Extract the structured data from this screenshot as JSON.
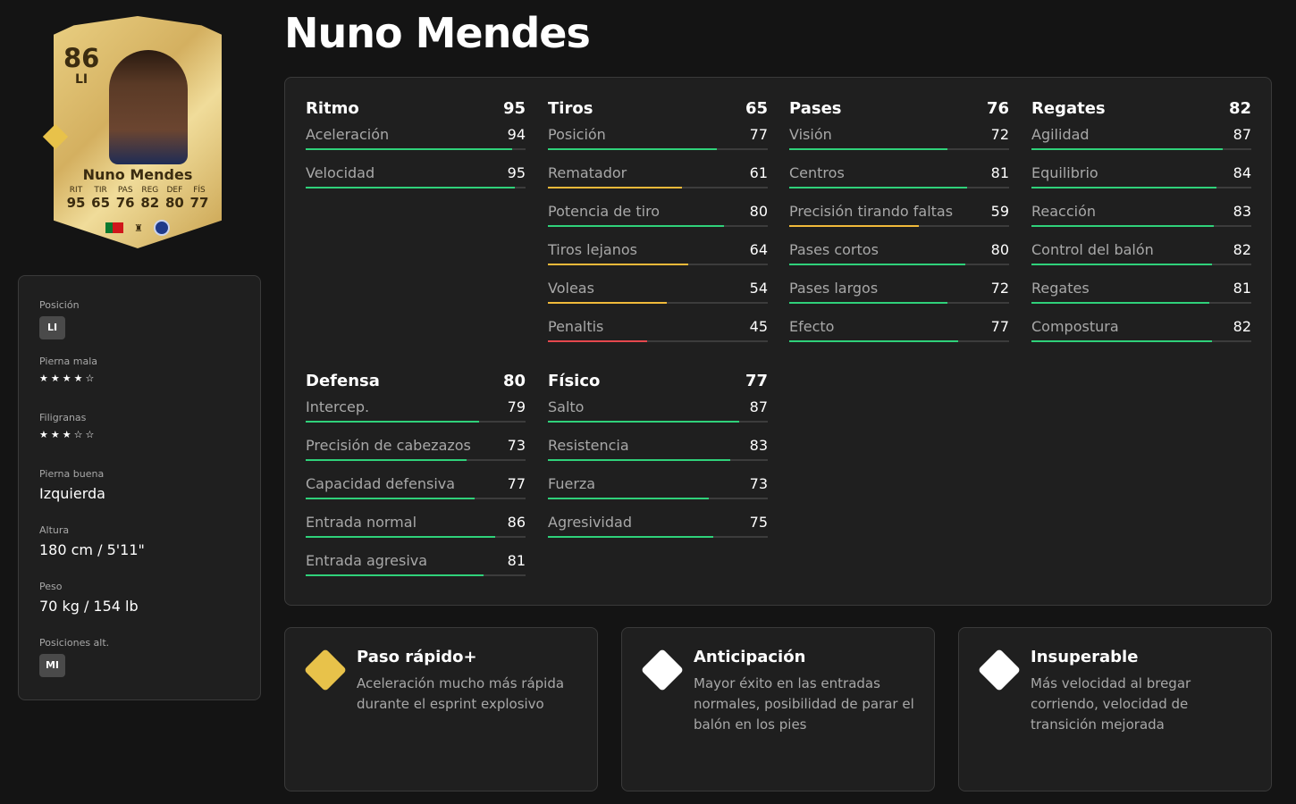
{
  "player": {
    "name": "Nuno Mendes",
    "overall": "86",
    "position": "LI"
  },
  "card": {
    "stats": [
      {
        "l": "RIT",
        "v": "95"
      },
      {
        "l": "TIR",
        "v": "65"
      },
      {
        "l": "PAS",
        "v": "76"
      },
      {
        "l": "REG",
        "v": "82"
      },
      {
        "l": "DEF",
        "v": "80"
      },
      {
        "l": "FÍS",
        "v": "77"
      }
    ]
  },
  "info": {
    "position_label": "Posición",
    "position_value": "LI",
    "weak_foot_label": "Pierna mala",
    "weak_foot_stars": 4,
    "weak_foot_text": "★★★★☆",
    "skills_label": "Filigranas",
    "skills_stars": 3,
    "skills_text": "★★★☆☆",
    "foot_label": "Pierna buena",
    "foot_value": "Izquierda",
    "height_label": "Altura",
    "height_value": "180 cm / 5'11\"",
    "weight_label": "Peso",
    "weight_value": "70 kg / 154 lb",
    "alt_label": "Posiciones alt.",
    "alt_value": "MI"
  },
  "colors": {
    "high": "#2fd17a",
    "mid": "#f0b93a",
    "low": "#e5484d"
  },
  "groups": [
    {
      "name": "Ritmo",
      "value": "95",
      "stats": [
        [
          "Aceleración",
          94
        ],
        [
          "Velocidad",
          95
        ]
      ]
    },
    {
      "name": "Tiros",
      "value": "65",
      "stats": [
        [
          "Posición",
          77
        ],
        [
          "Rematador",
          61
        ],
        [
          "Potencia de tiro",
          80
        ],
        [
          "Tiros lejanos",
          64
        ],
        [
          "Voleas",
          54
        ],
        [
          "Penaltis",
          45
        ]
      ]
    },
    {
      "name": "Pases",
      "value": "76",
      "stats": [
        [
          "Visión",
          72
        ],
        [
          "Centros",
          81
        ],
        [
          "Precisión tirando faltas",
          59
        ],
        [
          "Pases cortos",
          80
        ],
        [
          "Pases largos",
          72
        ],
        [
          "Efecto",
          77
        ]
      ]
    },
    {
      "name": "Regates",
      "value": "82",
      "stats": [
        [
          "Agilidad",
          87
        ],
        [
          "Equilibrio",
          84
        ],
        [
          "Reacción",
          83
        ],
        [
          "Control del balón",
          82
        ],
        [
          "Regates",
          81
        ],
        [
          "Compostura",
          82
        ]
      ]
    },
    {
      "name": "Defensa",
      "value": "80",
      "stats": [
        [
          "Intercep.",
          79
        ],
        [
          "Precisión de cabezazos",
          73
        ],
        [
          "Capacidad defensiva",
          77
        ],
        [
          "Entrada normal",
          86
        ],
        [
          "Entrada agresiva",
          81
        ]
      ]
    },
    {
      "name": "Físico",
      "value": "77",
      "stats": [
        [
          "Salto",
          87
        ],
        [
          "Resistencia",
          83
        ],
        [
          "Fuerza",
          73
        ],
        [
          "Agresividad",
          75
        ]
      ]
    }
  ],
  "playstyles": [
    {
      "title": "Paso rápido+",
      "desc": "Aceleración mucho más rápida durante el esprint explosivo",
      "icon": "rocket-icon",
      "color": "#e8c24a"
    },
    {
      "title": "Anticipación",
      "desc": "Mayor éxito en las entradas normales, posibilidad de parar el balón en los pies",
      "icon": "raccoon-icon",
      "color": "#ffffff"
    },
    {
      "title": "Insuperable",
      "desc": "Más velocidad al bregar corriendo, velocidad de transición mejorada",
      "icon": "wrestler-icon",
      "color": "#ffffff"
    }
  ]
}
